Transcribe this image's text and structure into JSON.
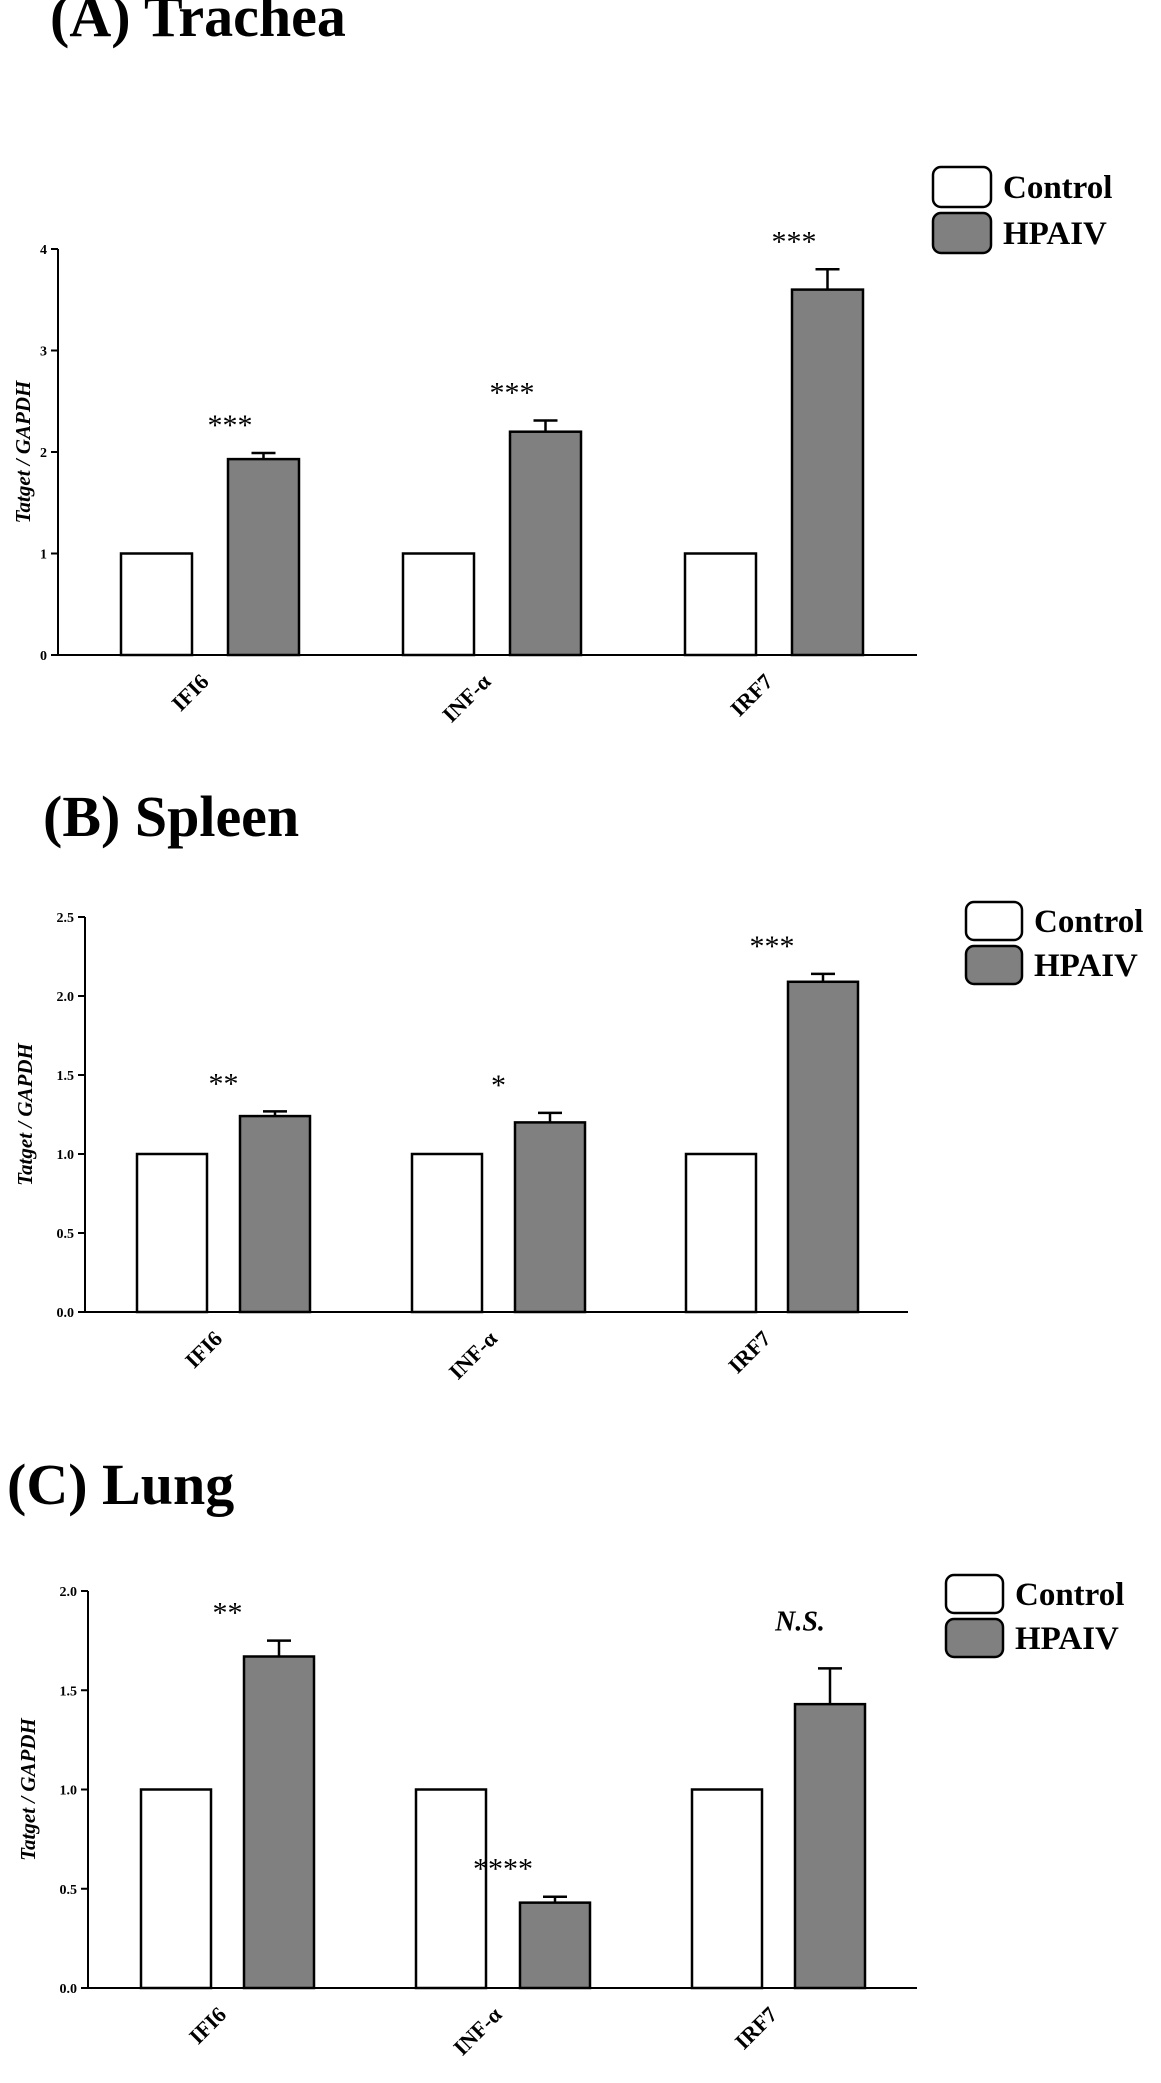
{
  "colors": {
    "control": "#ffffff",
    "hpaiv": "#808080",
    "stroke": "#000000"
  },
  "chart_data": [
    {
      "type": "bar",
      "title": "(A) Trachea",
      "ylabel": "Tatget / GAPDH",
      "xlabel": "",
      "categories": [
        "IFI6",
        "INF-α",
        "IRF7"
      ],
      "ylim": [
        0,
        4
      ],
      "yticks": [
        "0",
        "1",
        "2",
        "3",
        "4"
      ],
      "series": [
        {
          "name": "Control",
          "values": [
            1,
            1,
            1
          ],
          "errors": [
            0,
            0,
            0
          ]
        },
        {
          "name": "HPAIV",
          "values": [
            1.93,
            2.2,
            3.6
          ],
          "errors": [
            0.06,
            0.11,
            0.2
          ]
        }
      ],
      "significance": [
        "***",
        "***",
        "***"
      ],
      "legend": {
        "position": "top-right",
        "entries": [
          "Control",
          "HPAIV"
        ]
      }
    },
    {
      "type": "bar",
      "title": "(B) Spleen",
      "ylabel": "Tatget / GAPDH",
      "xlabel": "",
      "categories": [
        "IFI6",
        "INF-α",
        "IRF7"
      ],
      "ylim": [
        0,
        2.5
      ],
      "yticks": [
        "0.0",
        "0.5",
        "1.0",
        "1.5",
        "2.0",
        "2.5"
      ],
      "series": [
        {
          "name": "Control",
          "values": [
            1,
            1,
            1
          ],
          "errors": [
            0,
            0,
            0
          ]
        },
        {
          "name": "HPAIV",
          "values": [
            1.24,
            1.2,
            2.09
          ],
          "errors": [
            0.03,
            0.06,
            0.05
          ]
        }
      ],
      "significance": [
        "**",
        "*",
        "***"
      ],
      "legend": {
        "position": "top-right",
        "entries": [
          "Control",
          "HPAIV"
        ]
      }
    },
    {
      "type": "bar",
      "title": "(C) Lung",
      "ylabel": "Tatget / GAPDH",
      "xlabel": "",
      "categories": [
        "IFI6",
        "INF-α",
        "IRF7"
      ],
      "ylim": [
        0,
        2
      ],
      "yticks": [
        "0.0",
        "0.5",
        "1.0",
        "1.5",
        "2.0"
      ],
      "series": [
        {
          "name": "Control",
          "values": [
            1,
            1,
            1
          ],
          "errors": [
            0,
            0,
            0
          ]
        },
        {
          "name": "HPAIV",
          "values": [
            1.67,
            0.43,
            1.43
          ],
          "errors": [
            0.08,
            0.03,
            0.18
          ]
        }
      ],
      "significance": [
        "**",
        "****",
        "N.S."
      ],
      "legend": {
        "position": "top-right",
        "entries": [
          "Control",
          "HPAIV"
        ]
      }
    }
  ]
}
